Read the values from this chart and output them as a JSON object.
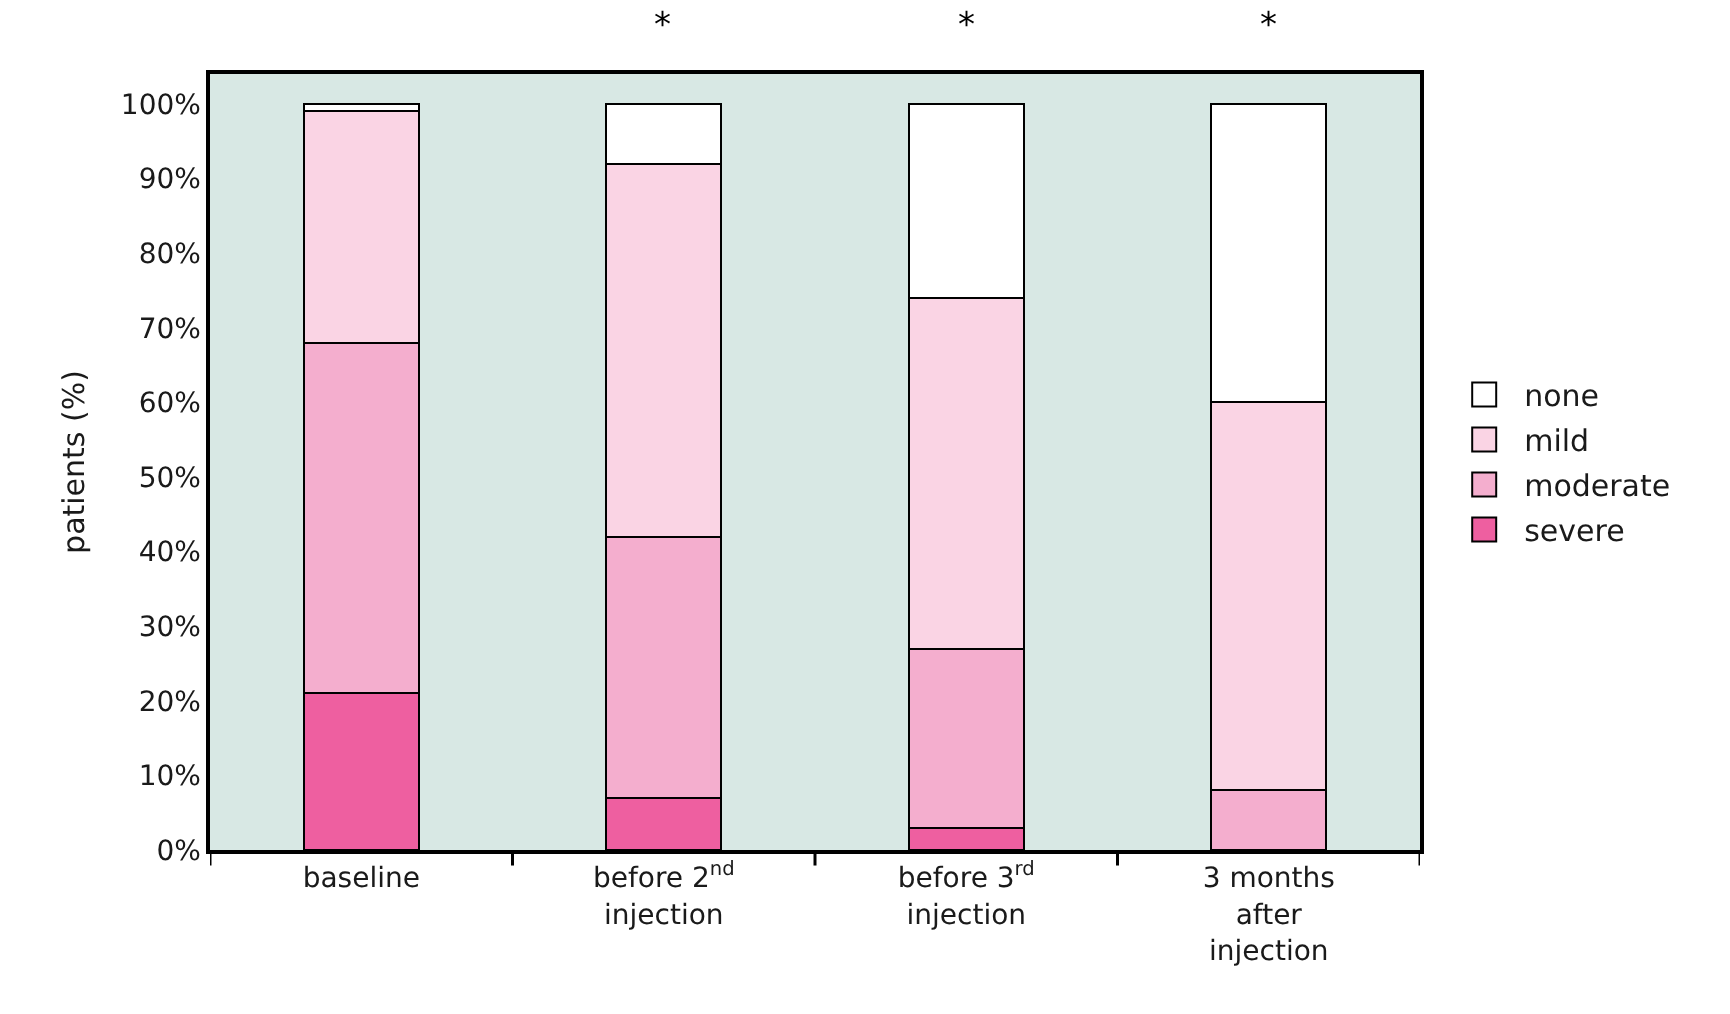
{
  "chart_data": {
    "type": "bar",
    "stacked": true,
    "ylabel": "patients (%)",
    "categories": [
      "baseline",
      "before 2$^{nd}$ injection",
      "before 3$^{rd}$ injection",
      "3 months after injection"
    ],
    "series": [
      {
        "name": "severe",
        "color": "#ee5fa0",
        "values": [
          21,
          7,
          3,
          0
        ]
      },
      {
        "name": "moderate",
        "color": "#f4aece",
        "values": [
          47,
          35,
          24,
          8
        ]
      },
      {
        "name": "mild",
        "color": "#fad4e4",
        "values": [
          31,
          50,
          47,
          52
        ]
      },
      {
        "name": "none",
        "color": "#ffffff",
        "values": [
          1,
          8,
          26,
          40
        ]
      }
    ],
    "ylim": [
      0,
      104
    ],
    "yticks": [
      {
        "value": 0,
        "label": "0%"
      },
      {
        "value": 10,
        "label": "10%"
      },
      {
        "value": 20,
        "label": "20%"
      },
      {
        "value": 30,
        "label": "30%"
      },
      {
        "value": 40,
        "label": "40%"
      },
      {
        "value": 50,
        "label": "50%"
      },
      {
        "value": 60,
        "label": "60%"
      },
      {
        "value": 70,
        "label": "70%"
      },
      {
        "value": 80,
        "label": "80%"
      },
      {
        "value": 90,
        "label": "90%"
      },
      {
        "value": 100,
        "label": "100%"
      }
    ],
    "grid": false,
    "legend": "right",
    "annotations": [
      "*",
      "*",
      "*"
    ]
  }
}
